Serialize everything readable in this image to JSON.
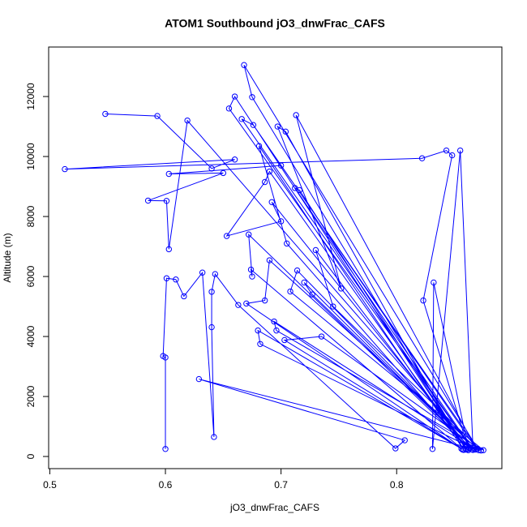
{
  "chart_data": {
    "type": "line",
    "title": "ATOM1 Southbound jO3_dnwFrac_CAFS",
    "x_label": "jO3_dnwFrac_CAFS",
    "y_label": "Altitude (m)",
    "xlim": [
      0.499,
      0.891
    ],
    "ylim": [
      -405,
      13650
    ],
    "xticks": [
      0.5,
      0.6,
      0.7,
      0.8
    ],
    "yticks": [
      0,
      2000,
      4000,
      6000,
      8000,
      10000,
      12000
    ],
    "markers": true,
    "series": [
      {
        "color": "#0000ff",
        "x": [
          0.548,
          0.593,
          0.64,
          0.66,
          0.513,
          0.822,
          0.843,
          0.848,
          0.823,
          0.862,
          0.832,
          0.831,
          0.855,
          0.866,
          0.619,
          0.603,
          0.601,
          0.585,
          0.65,
          0.603,
          0.7,
          0.87,
          0.668,
          0.675,
          0.86,
          0.66,
          0.655,
          0.864,
          0.666,
          0.676,
          0.869,
          0.713,
          0.752,
          0.697,
          0.704,
          0.858,
          0.681,
          0.705,
          0.862,
          0.73,
          0.745,
          0.873,
          0.735,
          0.703,
          0.856,
          0.68,
          0.682,
          0.868,
          0.694,
          0.696,
          0.875,
          0.708,
          0.714,
          0.865,
          0.72,
          0.727,
          0.866,
          0.712,
          0.716,
          0.86,
          0.69,
          0.686,
          0.653,
          0.7,
          0.692,
          0.863,
          0.672,
          0.675,
          0.674,
          0.857,
          0.67,
          0.686,
          0.69,
          0.871,
          0.629,
          0.807,
          0.799,
          0.663,
          0.643,
          0.64,
          0.64,
          0.642,
          0.632,
          0.616,
          0.609,
          0.601,
          0.598,
          0.6,
          0.6
        ],
        "values": [
          11420,
          11350,
          9600,
          9900,
          9580,
          9940,
          10200,
          10040,
          5200,
          250,
          5800,
          250,
          10200,
          280,
          11200,
          6910,
          8520,
          8530,
          9450,
          9420,
          9700,
          260,
          13050,
          11980,
          230,
          12000,
          11600,
          300,
          11250,
          11050,
          250,
          11380,
          5600,
          11000,
          10830,
          220,
          10350,
          7100,
          210,
          6880,
          5000,
          200,
          4000,
          3880,
          260,
          4200,
          3750,
          230,
          4500,
          4200,
          210,
          5500,
          6200,
          240,
          5800,
          5400,
          220,
          8950,
          8880,
          250,
          9500,
          9150,
          7350,
          7840,
          8480,
          270,
          7400,
          6000,
          6230,
          230,
          5100,
          5200,
          6540,
          210,
          2580,
          540,
          270,
          5050,
          6080,
          5490,
          4310,
          650,
          6130,
          5340,
          5900,
          5940,
          3350,
          3300,
          250
        ]
      }
    ]
  }
}
